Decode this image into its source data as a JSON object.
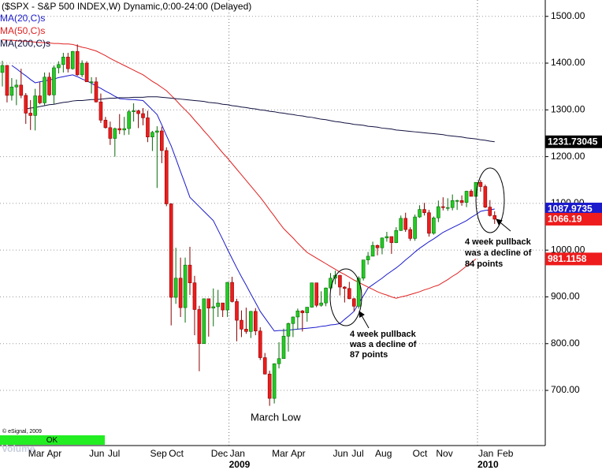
{
  "chart_data": {
    "type": "candlestick",
    "title": "($SPX - S&P 500 INDEX,W) Dynamic,0:00-24:00 (Delayed)",
    "categories": [
      null,
      null,
      null,
      null,
      null,
      "Mar",
      null,
      null,
      null,
      "Apr",
      null,
      null,
      null,
      null,
      null,
      null,
      null,
      null,
      "Jun",
      null,
      null,
      null,
      "Jul",
      null,
      null,
      null,
      null,
      null,
      null,
      null,
      null,
      "Sep",
      null,
      null,
      null,
      "Oct",
      null,
      null,
      null,
      null,
      null,
      null,
      null,
      null,
      "Dec",
      null,
      null,
      null,
      "Jan",
      null,
      null,
      null,
      null,
      null,
      null,
      null,
      null,
      "Mar",
      null,
      null,
      null,
      "Apr",
      null,
      null,
      null,
      null,
      null,
      null,
      null,
      null,
      "Jun",
      null,
      null,
      null,
      "Jul",
      null,
      null,
      null,
      null,
      "Aug",
      null,
      null,
      null,
      null,
      null,
      null,
      null,
      "Oct",
      null,
      null,
      null,
      null,
      "Nov",
      null,
      null,
      null,
      null,
      null,
      null,
      null,
      null,
      "Jan",
      null,
      null,
      null,
      "Feb"
    ],
    "years": [
      "2009",
      "2010"
    ],
    "ohlc": {
      "up_color": "#22cc22",
      "down_color": "#ee1c1c",
      "tag_color": "#ee1c1c",
      "open": [
        1380,
        1395,
        1331,
        1349,
        1353,
        1331,
        1293,
        1288,
        1330,
        1315,
        1370,
        1332,
        1390,
        1397,
        1413,
        1388,
        1425,
        1375,
        1400,
        1360,
        1360,
        1317,
        1278,
        1262,
        1239,
        1260,
        1257,
        1260,
        1296,
        1298,
        1292,
        1283,
        1242,
        1252,
        1255,
        1213,
        1099,
        899,
        940,
        877,
        968,
        930,
        873,
        800,
        896,
        876,
        879,
        887,
        872,
        931,
        890,
        850,
        831,
        826,
        869,
        827,
        770,
        735,
        683,
        757,
        768,
        816,
        843,
        857,
        870,
        866,
        878,
        930,
        882,
        887,
        919,
        940,
        946,
        921,
        918,
        896,
        880,
        940,
        979,
        987,
        1010,
        1005,
        1026,
        1029,
        1016,
        1042,
        1068,
        1044,
        1025,
        1071,
        1087,
        1080,
        1036,
        1069,
        1093,
        1091,
        1091,
        1106,
        1106,
        1102,
        1126,
        1115,
        1145,
        1136,
        1092,
        1074
      ],
      "high": [
        1405,
        1396,
        1368,
        1365,
        1388,
        1336,
        1321,
        1345,
        1359,
        1380,
        1380,
        1395,
        1404,
        1422,
        1422,
        1426,
        1440,
        1406,
        1404,
        1370,
        1370,
        1335,
        1285,
        1275,
        1262,
        1291,
        1285,
        1300,
        1314,
        1300,
        1304,
        1298,
        1255,
        1265,
        1264,
        1220,
        1100,
        1005,
        984,
        984,
        1007,
        945,
        881,
        896,
        896,
        918,
        915,
        887,
        932,
        943,
        896,
        871,
        877,
        870,
        876,
        835,
        780,
        742,
        758,
        803,
        832,
        845,
        858,
        875,
        872,
        878,
        930,
        930,
        912,
        920,
        951,
        956,
        947,
        923,
        932,
        898,
        944,
        979,
        996,
        1018,
        1012,
        1027,
        1039,
        1029,
        1049,
        1074,
        1080,
        1049,
        1076,
        1096,
        1101,
        1086,
        1072,
        1106,
        1113,
        1111,
        1119,
        1108,
        1117,
        1127,
        1130,
        1145,
        1150,
        1140,
        1107,
        1083
      ],
      "low": [
        1350,
        1316,
        1320,
        1310,
        1325,
        1270,
        1257,
        1256,
        1312,
        1310,
        1330,
        1312,
        1378,
        1380,
        1380,
        1386,
        1373,
        1370,
        1360,
        1335,
        1316,
        1272,
        1260,
        1225,
        1200,
        1248,
        1246,
        1247,
        1275,
        1261,
        1267,
        1231,
        1212,
        1133,
        1186,
        1094,
        839,
        885,
        857,
        845,
        904,
        818,
        741,
        800,
        815,
        837,
        857,
        857,
        857,
        888,
        805,
        814,
        821,
        812,
        818,
        765,
        734,
        667,
        672,
        747,
        768,
        783,
        814,
        830,
        826,
        847,
        877,
        878,
        879,
        880,
        914,
        927,
        903,
        888,
        895,
        869,
        875,
        935,
        969,
        987,
        989,
        991,
        1018,
        992,
        1015,
        1041,
        1039,
        1020,
        1020,
        1069,
        1074,
        1029,
        1033,
        1060,
        1085,
        1084,
        1085,
        1086,
        1095,
        1092,
        1115,
        1114,
        1125,
        1090,
        1072,
        1056
      ],
      "close": [
        1395,
        1331,
        1349,
        1353,
        1331,
        1293,
        1288,
        1330,
        1315,
        1370,
        1332,
        1390,
        1397,
        1413,
        1388,
        1425,
        1375,
        1400,
        1360,
        1360,
        1317,
        1278,
        1262,
        1239,
        1260,
        1257,
        1260,
        1296,
        1298,
        1292,
        1283,
        1242,
        1252,
        1255,
        1213,
        1099,
        899,
        940,
        877,
        968,
        930,
        873,
        800,
        896,
        876,
        879,
        887,
        872,
        931,
        890,
        850,
        831,
        826,
        869,
        827,
        770,
        735,
        683,
        757,
        768,
        816,
        843,
        857,
        870,
        866,
        878,
        930,
        882,
        887,
        919,
        940,
        946,
        921,
        918,
        896,
        880,
        940,
        979,
        987,
        1010,
        1005,
        1026,
        1029,
        1016,
        1042,
        1068,
        1044,
        1025,
        1071,
        1087,
        1080,
        1036,
        1069,
        1093,
        1091,
        1091,
        1106,
        1106,
        1102,
        1126,
        1115,
        1145,
        1136,
        1092,
        1074,
        1066.19
      ]
    },
    "series": [
      {
        "name": "MA(20,C)s",
        "color": "#1a1acc",
        "tag_color": "#1a1acc",
        "values": [
          null,
          null,
          1395,
          1388,
          1380,
          1373,
          1365,
          1358,
          1360,
          1362,
          1364,
          1366,
          1369,
          1371,
          1373,
          1375,
          1371,
          1366,
          1362,
          1357,
          1351,
          1346,
          1340,
          1335,
          1329,
          1324,
          1323,
          1322,
          1322,
          1321,
          1320,
          1310,
          1300,
          1290,
          1268,
          1245,
          1223,
          1196,
          1168,
          1141,
          1113,
          1103,
          1093,
          1083,
          1073,
          1063,
          1043,
          1023,
          1002,
          982,
          962,
          943,
          925,
          906,
          888,
          869,
          855,
          841,
          827,
          828,
          828,
          829,
          830,
          831,
          832,
          833,
          834,
          835,
          837,
          838,
          840,
          841,
          843,
          852,
          860,
          869,
          886,
          902,
          919,
          926,
          933,
          940,
          948,
          955,
          962,
          970,
          979,
          987,
          996,
          1004,
          1011,
          1018,
          1024,
          1031,
          1038,
          1043,
          1048,
          1053,
          1058,
          1063,
          1070,
          1076,
          1083,
          1085,
          1086,
          1087.9735
        ]
      },
      {
        "name": "MA(50,C)s",
        "color": "#e02020",
        "tag_color": "#ee1c1c",
        "values": [
          1450,
          1449,
          1449,
          1448,
          1447,
          1447,
          1446,
          1445,
          1444,
          1444,
          1443,
          1442,
          1442,
          1441,
          1441,
          1440,
          1437,
          1434,
          1432,
          1429,
          1426,
          1421,
          1416,
          1410,
          1405,
          1400,
          1395,
          1390,
          1385,
          1380,
          1375,
          1368,
          1361,
          1355,
          1348,
          1341,
          1331,
          1321,
          1310,
          1300,
          1290,
          1278,
          1267,
          1255,
          1244,
          1232,
          1220,
          1208,
          1197,
          1185,
          1173,
          1161,
          1149,
          1137,
          1125,
          1113,
          1100,
          1086,
          1073,
          1059,
          1046,
          1036,
          1026,
          1015,
          1005,
          995,
          989,
          983,
          977,
          971,
          965,
          959,
          953,
          948,
          942,
          936,
          931,
          926,
          921,
          916,
          911,
          907,
          904,
          900,
          897,
          900,
          902,
          905,
          908,
          911,
          915,
          918,
          922,
          925,
          931,
          937,
          944,
          950,
          958,
          966,
          973,
          981.1158,
          null,
          null,
          null,
          null
        ]
      },
      {
        "name": "MA(200,C)s",
        "color": "#101040",
        "tag_color": "#000000",
        "values": [
          null,
          null,
          null,
          null,
          null,
          1302,
          1304,
          1305,
          1307,
          1309,
          1311,
          1312,
          1314,
          1316,
          1317,
          1319,
          1320,
          1320,
          1321,
          1322,
          1322,
          1323,
          1324,
          1325,
          1325,
          1326,
          1326,
          1326,
          1327,
          1327,
          1327,
          1328,
          1328,
          1328,
          1327,
          1326,
          1325,
          1324,
          1323,
          1322,
          1321,
          1320,
          1319,
          1318,
          1316,
          1315,
          1314,
          1312,
          1311,
          1309,
          1308,
          1306,
          1305,
          1303,
          1302,
          1300,
          1299,
          1297,
          1296,
          1294,
          1293,
          1291,
          1290,
          1288,
          1287,
          1285,
          1284,
          1282,
          1280,
          1279,
          1277,
          1275,
          1274,
          1272,
          1271,
          1269,
          1268,
          1267,
          1265,
          1264,
          1263,
          1261,
          1260,
          1259,
          1257,
          1256,
          1255,
          1254,
          1253,
          1252,
          1251,
          1250,
          1249,
          1248,
          1247,
          1245,
          1244,
          1243,
          1242,
          1240,
          1239,
          1238,
          1236,
          1235,
          1233,
          1231.73045
        ]
      }
    ],
    "ylim": [
      582,
      1535
    ],
    "yticks": [
      {
        "value": 700,
        "label": "700.00"
      },
      {
        "value": 800,
        "label": "800.00"
      },
      {
        "value": 900,
        "label": "900.00"
      },
      {
        "value": 1000,
        "label": "1000.00"
      },
      {
        "value": 1100,
        "label": "1100.00"
      },
      {
        "value": 1200,
        "label": "1200.00"
      },
      {
        "value": 1300,
        "label": "1300.00"
      },
      {
        "value": 1400,
        "label": "1400.00"
      },
      {
        "value": 1500,
        "label": "1500.00"
      }
    ],
    "grid": true,
    "annotations": {
      "march_low": "March Low",
      "pullback_2009": [
        "4 week pullback",
        "was a decline of",
        "87 points"
      ],
      "pullback_2010": [
        "4 week pullback",
        "was a decline of",
        "84 points"
      ]
    },
    "footer": {
      "copyright": "© eSignal, 2009",
      "status": "OK",
      "volume_label": "Volume"
    }
  }
}
